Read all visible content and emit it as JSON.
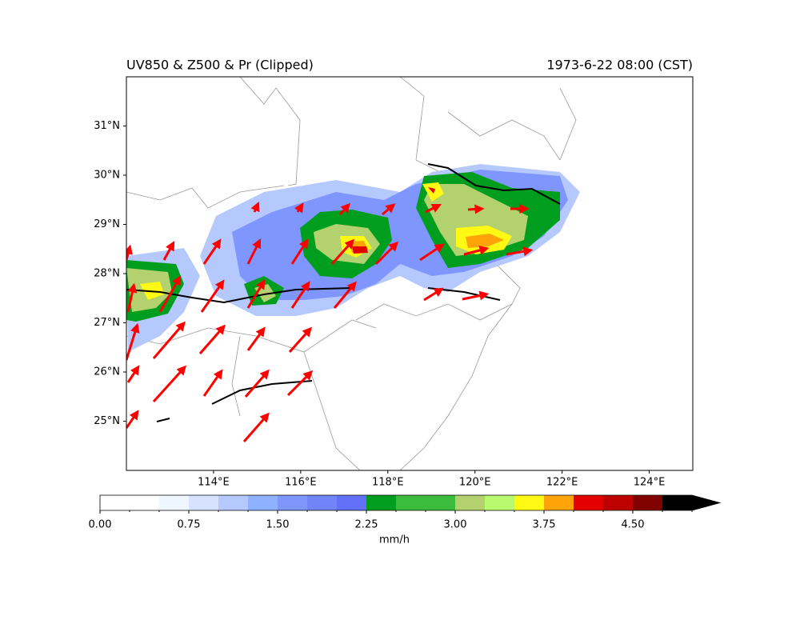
{
  "chart_data": {
    "type": "contour-map",
    "title_left": "UV850 & Z500 & Pr (Clipped)",
    "title_right": "1973-6-22 08:00 (CST)",
    "xlim": [
      112,
      125
    ],
    "ylim": [
      24,
      32
    ],
    "xticks": [
      {
        "value": 114,
        "label": "114°E"
      },
      {
        "value": 116,
        "label": "116°E"
      },
      {
        "value": 118,
        "label": "118°E"
      },
      {
        "value": 120,
        "label": "120°E"
      },
      {
        "value": 122,
        "label": "122°E"
      },
      {
        "value": 124,
        "label": "124°E"
      }
    ],
    "yticks": [
      {
        "value": 25,
        "label": "25°N"
      },
      {
        "value": 26,
        "label": "26°N"
      },
      {
        "value": 27,
        "label": "27°N"
      },
      {
        "value": 28,
        "label": "28°N"
      },
      {
        "value": 29,
        "label": "29°N"
      },
      {
        "value": 30,
        "label": "30°N"
      },
      {
        "value": 31,
        "label": "31°N"
      }
    ],
    "colorbar": {
      "label": "mm/h",
      "levels": [
        0,
        0.25,
        0.5,
        0.75,
        1,
        1.25,
        1.5,
        1.75,
        2,
        2.25,
        2.5,
        2.75,
        3,
        3.25,
        3.5,
        3.75,
        4,
        4.25,
        4.5,
        4.75,
        5
      ],
      "colors": [
        "#ffffff",
        "#ffffff",
        "#eef7ff",
        "#d6e2ff",
        "#b5c9ff",
        "#8eb2ff",
        "#7f96ff",
        "#7285f8",
        "#6370f8",
        "#009e1e",
        "#3cbc3d",
        "#3cbc3d",
        "#b3d16e",
        "#b9f96e",
        "#fff913",
        "#ffa309",
        "#e50000",
        "#bd0000",
        "#810000",
        "#000000"
      ],
      "extend": "max",
      "ticks": [
        {
          "value": 0,
          "label": "0.00"
        },
        {
          "value": 0.75,
          "label": "0.75"
        },
        {
          "value": 1.5,
          "label": "1.50"
        },
        {
          "value": 2.25,
          "label": "2.25"
        },
        {
          "value": 3,
          "label": "3.00"
        },
        {
          "value": 3.75,
          "label": "3.75"
        },
        {
          "value": 4.5,
          "label": "4.50"
        }
      ]
    }
  }
}
